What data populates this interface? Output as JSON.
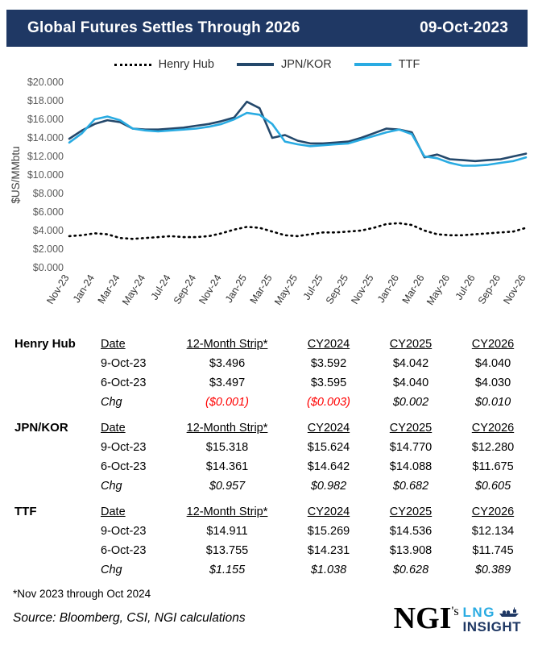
{
  "header": {
    "title": "Global Futures Settles Through 2026",
    "date": "09-Oct-2023"
  },
  "chart_data": {
    "type": "line",
    "title": "",
    "ylabel": "$US/MMbtu",
    "ylim": [
      0,
      20
    ],
    "ytick_step": 2,
    "ytick_labels": [
      "$0.000",
      "$2.000",
      "$4.000",
      "$6.000",
      "$8.000",
      "$10.000",
      "$12.000",
      "$14.000",
      "$16.000",
      "$18.000",
      "$20.000"
    ],
    "x_ticks": [
      "Nov-23",
      "Jan-24",
      "Mar-24",
      "May-24",
      "Jul-24",
      "Sep-24",
      "Nov-24",
      "Jan-25",
      "Mar-25",
      "May-25",
      "Jul-25",
      "Sep-25",
      "Nov-25",
      "Jan-26",
      "Mar-26",
      "May-26",
      "Jul-26",
      "Sep-26",
      "Nov-26"
    ],
    "x_resolution": "monthly, Nov-23 through Nov-26",
    "legend_position": "top",
    "grid": false,
    "series": [
      {
        "name": "Henry Hub",
        "color": "#000000",
        "style": "dotted",
        "values": [
          3.4,
          3.5,
          3.7,
          3.6,
          3.2,
          3.1,
          3.2,
          3.3,
          3.4,
          3.3,
          3.3,
          3.4,
          3.7,
          4.1,
          4.4,
          4.3,
          3.9,
          3.5,
          3.4,
          3.6,
          3.8,
          3.8,
          3.9,
          4.0,
          4.3,
          4.7,
          4.8,
          4.6,
          4.0,
          3.6,
          3.5,
          3.5,
          3.6,
          3.7,
          3.8,
          3.9,
          4.3
        ]
      },
      {
        "name": "JPN/KOR",
        "color": "#24486b",
        "style": "solid",
        "values": [
          13.9,
          14.8,
          15.5,
          15.9,
          15.7,
          15.0,
          14.9,
          14.9,
          15.0,
          15.1,
          15.3,
          15.5,
          15.8,
          16.2,
          17.9,
          17.2,
          14.0,
          14.3,
          13.7,
          13.4,
          13.4,
          13.5,
          13.6,
          14.0,
          14.5,
          15.0,
          14.9,
          14.6,
          11.9,
          12.2,
          11.7,
          11.6,
          11.5,
          11.6,
          11.7,
          12.0,
          12.3
        ]
      },
      {
        "name": "TTF",
        "color": "#29abe2",
        "style": "solid",
        "values": [
          13.5,
          14.5,
          16.0,
          16.3,
          15.9,
          15.0,
          14.8,
          14.7,
          14.8,
          14.9,
          15.0,
          15.2,
          15.5,
          16.0,
          16.7,
          16.5,
          15.5,
          13.6,
          13.3,
          13.1,
          13.2,
          13.3,
          13.4,
          13.8,
          14.2,
          14.6,
          14.9,
          14.4,
          12.0,
          11.8,
          11.3,
          11.0,
          11.0,
          11.1,
          11.3,
          11.5,
          11.9
        ]
      }
    ]
  },
  "tables": [
    {
      "id": "henry-hub",
      "label": "Henry Hub",
      "headers": [
        "Date",
        "12-Month Strip*",
        "CY2024",
        "CY2025",
        "CY2026"
      ],
      "rows": [
        {
          "label": "9-Oct-23",
          "italic": false,
          "values": [
            "$3.496",
            "$3.592",
            "$4.042",
            "$4.040"
          ]
        },
        {
          "label": "6-Oct-23",
          "italic": false,
          "values": [
            "$3.497",
            "$3.595",
            "$4.040",
            "$4.030"
          ]
        },
        {
          "label": "Chg",
          "italic": true,
          "values": [
            "($0.001)",
            "($0.003)",
            "$0.002",
            "$0.010"
          ]
        }
      ]
    },
    {
      "id": "jpn-kor",
      "label": "JPN/KOR",
      "headers": [
        "Date",
        "12-Month Strip*",
        "CY2024",
        "CY2025",
        "CY2026"
      ],
      "rows": [
        {
          "label": "9-Oct-23",
          "italic": false,
          "values": [
            "$15.318",
            "$15.624",
            "$14.770",
            "$12.280"
          ]
        },
        {
          "label": "6-Oct-23",
          "italic": false,
          "values": [
            "$14.361",
            "$14.642",
            "$14.088",
            "$11.675"
          ]
        },
        {
          "label": "Chg",
          "italic": true,
          "values": [
            "$0.957",
            "$0.982",
            "$0.682",
            "$0.605"
          ]
        }
      ]
    },
    {
      "id": "ttf",
      "label": "TTF",
      "headers": [
        "Date",
        "12-Month Strip*",
        "CY2024",
        "CY2025",
        "CY2026"
      ],
      "rows": [
        {
          "label": "9-Oct-23",
          "italic": false,
          "values": [
            "$14.911",
            "$15.269",
            "$14.536",
            "$12.134"
          ]
        },
        {
          "label": "6-Oct-23",
          "italic": false,
          "values": [
            "$13.755",
            "$14.231",
            "$13.908",
            "$11.745"
          ]
        },
        {
          "label": "Chg",
          "italic": true,
          "values": [
            "$1.155",
            "$1.038",
            "$0.628",
            "$0.389"
          ]
        }
      ]
    }
  ],
  "footnote": "*Nov 2023 through Oct 2024",
  "source": "Source: Bloomberg, CSI, NGI calculations",
  "logo": {
    "name": "NGI",
    "suffix": "'s",
    "line1": "LNG",
    "line2": "INSIGHT"
  }
}
